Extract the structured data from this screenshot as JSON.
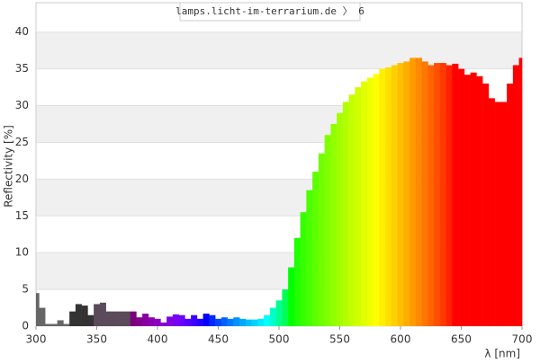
{
  "chart_data": {
    "type": "spectrum",
    "title": "lamps.licht-im-terrarium.de 〉 6",
    "x_label": "λ [nm]",
    "y_label": "Reflectivity [%]",
    "x": [
      300,
      305,
      310,
      315,
      320,
      325,
      330,
      335,
      340,
      345,
      350,
      355,
      360,
      365,
      370,
      375,
      380,
      385,
      390,
      395,
      400,
      405,
      410,
      415,
      420,
      425,
      430,
      435,
      440,
      445,
      450,
      455,
      460,
      465,
      470,
      475,
      480,
      485,
      490,
      495,
      500,
      505,
      510,
      515,
      520,
      525,
      530,
      535,
      540,
      545,
      550,
      555,
      560,
      565,
      570,
      575,
      580,
      585,
      590,
      595,
      600,
      605,
      610,
      615,
      620,
      625,
      630,
      635,
      640,
      645,
      650,
      655,
      660,
      665,
      670,
      675,
      680,
      685,
      690,
      695,
      700
    ],
    "values": [
      4.5,
      2.5,
      0.3,
      0.3,
      0.8,
      0.3,
      2,
      3,
      2.8,
      1.5,
      3,
      3.2,
      2,
      2,
      2,
      2,
      2,
      1.2,
      1.7,
      1.2,
      1,
      0.5,
      1.3,
      1.6,
      1.5,
      1,
      1.5,
      1,
      1.7,
      1.5,
      1,
      1.2,
      1,
      1.2,
      1,
      0.9,
      0.9,
      1,
      1.5,
      2.5,
      3.5,
      5,
      8,
      12,
      15.5,
      18.5,
      21,
      23.5,
      26,
      27.5,
      29,
      30.5,
      31.5,
      32.5,
      33.3,
      33.8,
      34.3,
      35,
      35.2,
      35.5,
      35.8,
      36,
      36.5,
      36.5,
      36,
      35.5,
      35.8,
      35.8,
      35.5,
      35.7,
      35,
      34.2,
      34.5,
      34,
      33,
      31,
      30.5,
      30.5,
      33,
      35.5,
      36.5
    ],
    "xlim": [
      300,
      700
    ],
    "ylim": [
      0,
      44
    ],
    "xticks": [
      300,
      350,
      400,
      450,
      500,
      550,
      600,
      650,
      700
    ],
    "yticks": [
      0,
      5,
      10,
      15,
      20,
      25,
      30,
      35,
      40
    ],
    "grid": true
  }
}
